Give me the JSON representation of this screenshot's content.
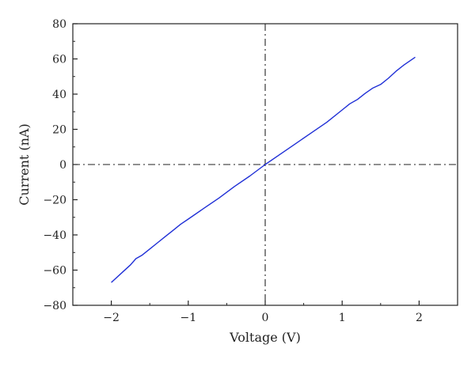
{
  "chart_data": {
    "type": "line",
    "title": "",
    "xlabel": "Voltage (V)",
    "ylabel": "Current (nA)",
    "xlim": [
      -2.5,
      2.5
    ],
    "ylim": [
      -80,
      80
    ],
    "x_ticks": [
      -2,
      -1,
      0,
      1,
      2
    ],
    "x_tick_labels": [
      "−2",
      "−1",
      "0",
      "1",
      "2"
    ],
    "y_ticks": [
      -80,
      -60,
      -40,
      -20,
      0,
      20,
      40,
      60,
      80
    ],
    "y_tick_labels": [
      "−80",
      "−60",
      "−40",
      "−20",
      "0",
      "20",
      "40",
      "60",
      "80"
    ],
    "grid": false,
    "reference_lines": [
      {
        "orientation": "vertical",
        "value": 0,
        "style": "dash-dot"
      },
      {
        "orientation": "horizontal",
        "value": 0,
        "style": "dash-dot"
      }
    ],
    "series": [
      {
        "color": "#1f2fd6",
        "x": [
          -2.0,
          -1.85,
          -1.75,
          -1.68,
          -1.6,
          -1.5,
          -1.4,
          -1.3,
          -1.2,
          -1.1,
          -1.0,
          -0.8,
          -0.6,
          -0.4,
          -0.2,
          0.0,
          0.2,
          0.4,
          0.6,
          0.8,
          1.0,
          1.1,
          1.2,
          1.3,
          1.4,
          1.5,
          1.6,
          1.7,
          1.8,
          1.95
        ],
        "y": [
          -67,
          -61,
          -57,
          -53.5,
          -51.5,
          -48,
          -44.5,
          -41,
          -37.5,
          -34,
          -31,
          -25,
          -19,
          -12.5,
          -6.5,
          0,
          6,
          12,
          18,
          24,
          31,
          34.5,
          37,
          40.5,
          43.5,
          45.5,
          49,
          53,
          56.5,
          61
        ]
      }
    ]
  }
}
